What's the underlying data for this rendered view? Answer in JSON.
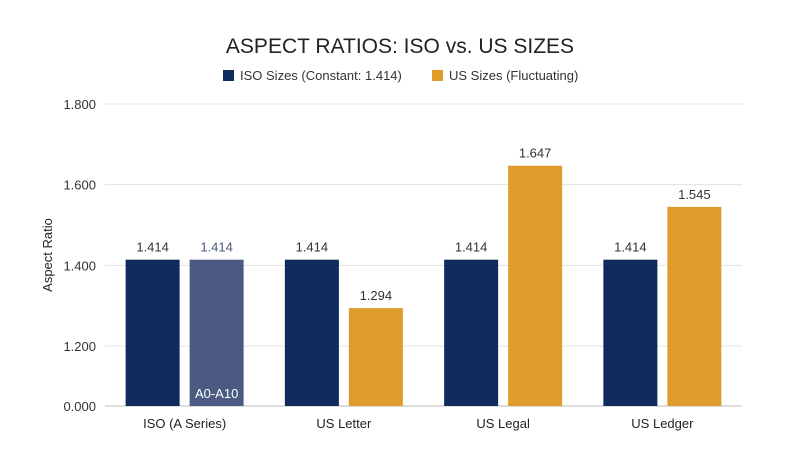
{
  "chart_data": {
    "type": "bar",
    "title": "ASPECT RATIOS: ISO vs. US SIZES",
    "xlabel": "",
    "ylabel": "Aspect Ratio",
    "ylim": [
      0,
      1.8
    ],
    "yticks": [
      "0.000",
      "1.200",
      "1.400",
      "1.600",
      "1.800"
    ],
    "ytick_values": [
      0,
      1.2,
      1.4,
      1.6,
      1.8
    ],
    "axis_break": "between 0.000 and 1.200",
    "grid": true,
    "legend_position": "top",
    "categories": [
      "ISO (A Series)",
      "US Letter",
      "US Legal",
      "US Ledger"
    ],
    "series": [
      {
        "name": "ISO Sizes (Constant: 1.414)",
        "color": "#0f2a5c",
        "values": [
          1.414,
          1.414,
          1.414,
          1.414
        ]
      },
      {
        "name": "US Sizes (Fluctuating)",
        "color": "#e09c2a",
        "values": [
          1.414,
          1.294,
          1.647,
          1.545
        ]
      }
    ],
    "data_labels": [
      [
        "1.414",
        "1.414",
        "1.414",
        "1.414"
      ],
      [
        "1.414",
        "1.294",
        "1.647",
        "1.545"
      ]
    ],
    "special_bar": {
      "category_index": 0,
      "series_index": 1,
      "color": "#4a5a82",
      "label": "A0-A10"
    }
  }
}
